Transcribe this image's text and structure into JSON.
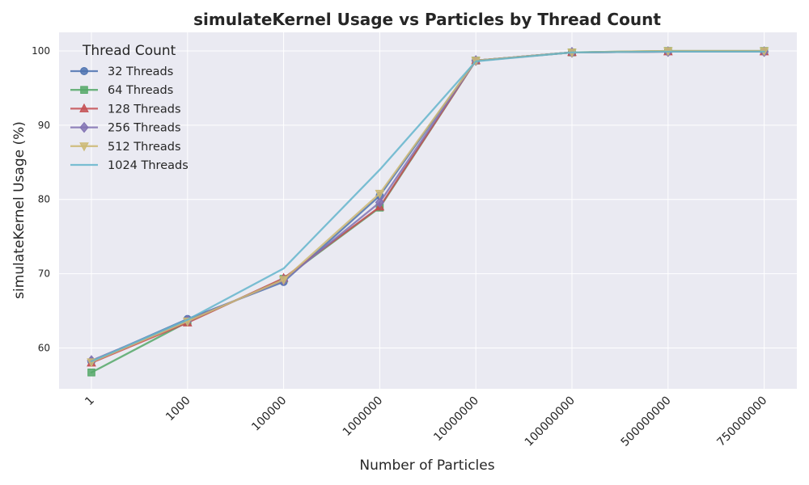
{
  "chart_data": {
    "type": "line",
    "title": "simulateKernel Usage vs Particles by Thread Count",
    "xlabel": "Number of Particles",
    "ylabel": "simulateKernel Usage (%)",
    "categories": [
      "1",
      "1000",
      "100000",
      "1000000",
      "10000000",
      "100000000",
      "500000000",
      "750000000"
    ],
    "ylim": [
      54.5,
      102.5
    ],
    "yticks": [
      60,
      70,
      80,
      90,
      100
    ],
    "grid": true,
    "legend": {
      "title": "Thread Count",
      "placement": "top-left"
    },
    "series": [
      {
        "name": "32 Threads",
        "color": "#4c72b0",
        "marker": "circle",
        "values": [
          58.2,
          63.9,
          68.9,
          80.5,
          98.7,
          99.8,
          99.9,
          99.9
        ]
      },
      {
        "name": "64 Threads",
        "color": "#55a868",
        "marker": "square",
        "values": [
          56.7,
          63.5,
          69.3,
          78.9,
          98.7,
          99.8,
          100.0,
          100.0
        ]
      },
      {
        "name": "128 Threads",
        "color": "#c44e52",
        "marker": "triangle-up",
        "values": [
          58.0,
          63.4,
          69.4,
          79.0,
          98.7,
          99.8,
          99.9,
          99.9
        ]
      },
      {
        "name": "256 Threads",
        "color": "#8172b3",
        "marker": "diamond",
        "values": [
          58.3,
          63.7,
          69.1,
          79.6,
          98.7,
          99.8,
          99.9,
          99.9
        ]
      },
      {
        "name": "512 Threads",
        "color": "#ccb974",
        "marker": "triangle-down",
        "values": [
          58.1,
          63.6,
          69.2,
          80.8,
          98.7,
          99.8,
          100.0,
          100.0
        ]
      },
      {
        "name": "1024 Threads",
        "color": "#64b5cd",
        "marker": "none",
        "values": [
          58.2,
          63.8,
          70.7,
          84.0,
          98.6,
          99.8,
          99.9,
          99.9
        ]
      }
    ]
  }
}
